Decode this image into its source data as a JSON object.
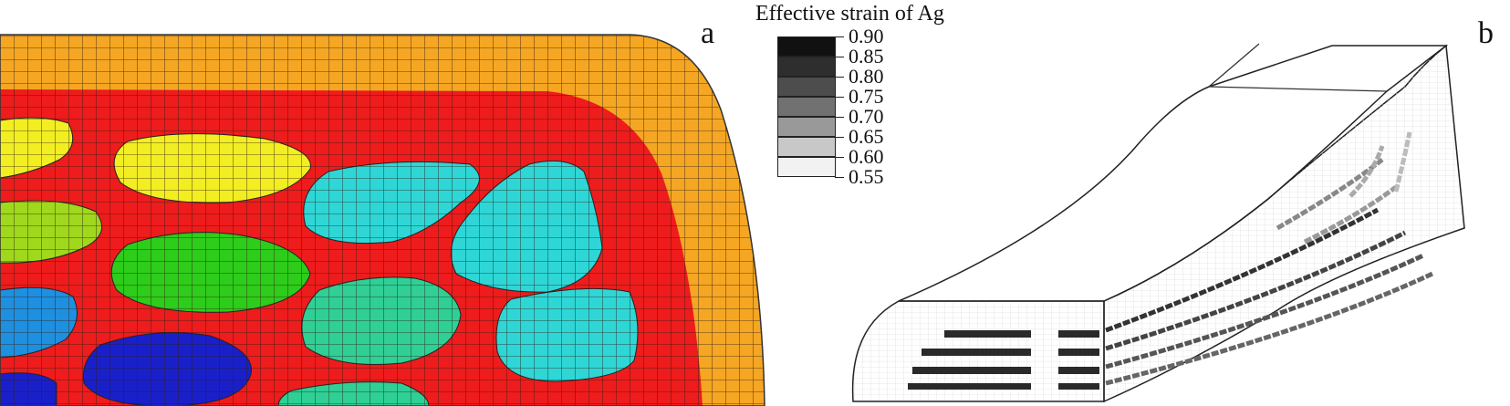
{
  "panels": {
    "a_label": "a",
    "b_label": "b"
  },
  "legend": {
    "title": "Effective strain of Ag",
    "levels": [
      {
        "value": "0.90",
        "color": "#111111"
      },
      {
        "value": "0.85",
        "color": "#2e2e2e"
      },
      {
        "value": "0.80",
        "color": "#4d4d4d"
      },
      {
        "value": "0.75",
        "color": "#717171"
      },
      {
        "value": "0.70",
        "color": "#999999"
      },
      {
        "value": "0.65",
        "color": "#c8c8c8"
      },
      {
        "value": "0.60",
        "color": "#f2f2f2"
      },
      {
        "value": "0.55",
        "color": ""
      }
    ]
  },
  "colors": {
    "sheath": "#f5a623",
    "matrix": "#ee1c1c",
    "filament_yellow": "#f2ee22",
    "filament_lime": "#9fd81c",
    "filament_green": "#2ecc1b",
    "filament_cyan": "#2fd6d6",
    "filament_teal": "#2fcf95",
    "filament_blue": "#1f8fe0",
    "filament_navy": "#1a20c9"
  }
}
